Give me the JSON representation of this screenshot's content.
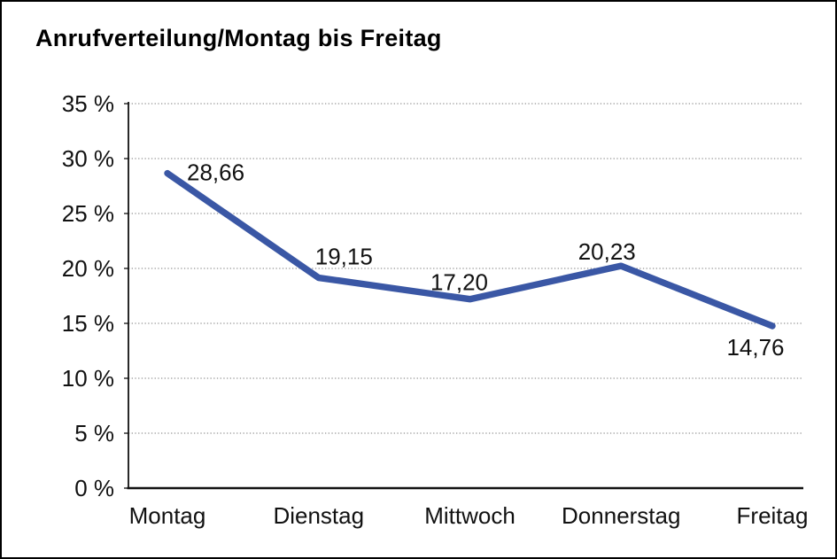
{
  "page": {
    "title": "Anrufverteilung/Montag bis Freitag"
  },
  "chart_data": {
    "type": "line",
    "title": "Anrufverteilung/Montag bis Freitag",
    "categories": [
      "Montag",
      "Dienstag",
      "Mittwoch",
      "Donnerstag",
      "Freitag"
    ],
    "values": [
      28.66,
      19.15,
      17.2,
      20.23,
      14.76
    ],
    "data_labels": [
      "28,66",
      "19,15",
      "17,20",
      "20,23",
      "14,76"
    ],
    "y_tick_labels": [
      "0 %",
      "5 %",
      "10 %",
      "15 %",
      "20 %",
      "25 %",
      "30 %",
      "35 %"
    ],
    "ylim": [
      0,
      35
    ],
    "y_step": 5,
    "xlabel": "",
    "ylabel": "",
    "legend": "none",
    "grid": "horizontal-dotted",
    "colors": {
      "line": "#3A57A5",
      "grid": "#787878",
      "axis": "#111111",
      "text": "#111111",
      "background": "#ffffff",
      "border": "#000000"
    }
  }
}
